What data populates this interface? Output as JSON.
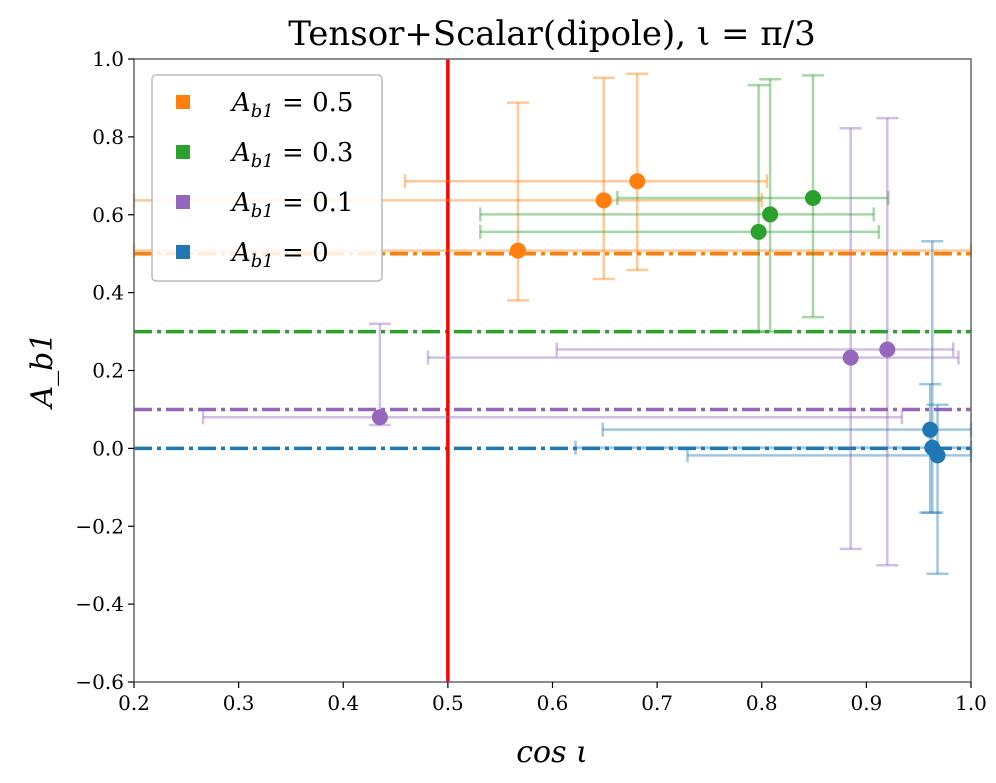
{
  "chart_data": {
    "type": "scatter",
    "title": "Tensor+Scalar(dipole), ι = π/3",
    "xlabel": "cos ι",
    "ylabel": "A_b1",
    "xlim": [
      0.2,
      1.0
    ],
    "ylim": [
      -0.6,
      1.0
    ],
    "xticks": [
      "0.2",
      "0.3",
      "0.4",
      "0.5",
      "0.6",
      "0.7",
      "0.8",
      "0.9",
      "1.0"
    ],
    "xtick_values": [
      0.2,
      0.3,
      0.4,
      0.5,
      0.6,
      0.7,
      0.8,
      0.9,
      1.0
    ],
    "yticks": [
      "−0.6",
      "−0.4",
      "−0.2",
      "0.0",
      "0.2",
      "0.4",
      "0.6",
      "0.8",
      "1.0"
    ],
    "ytick_values": [
      -0.6,
      -0.4,
      -0.2,
      0.0,
      0.2,
      0.4,
      0.6,
      0.8,
      1.0
    ],
    "vertical_line": {
      "x": 0.5,
      "color": "#ff0000"
    },
    "legend_position": "upper-left",
    "series": [
      {
        "name": "A_b1 = 0.5",
        "legend_label": "A",
        "legend_sub": "b1",
        "legend_value": " = 0.5",
        "true_value": 0.5,
        "color": "#ff7f0e",
        "points": [
          {
            "x": 0.567,
            "y": 0.508,
            "xlo": 0.2,
            "xhi": 1.0,
            "ylo": 0.38,
            "yhi": 0.888
          },
          {
            "x": 0.649,
            "y": 0.637,
            "xlo": 0.2,
            "xhi": 0.8,
            "ylo": 0.435,
            "yhi": 0.952
          },
          {
            "x": 0.681,
            "y": 0.686,
            "xlo": 0.459,
            "xhi": 0.805,
            "ylo": 0.458,
            "yhi": 0.962
          }
        ]
      },
      {
        "name": "A_b1 = 0.3",
        "legend_label": "A",
        "legend_sub": "b1",
        "legend_value": " = 0.3",
        "true_value": 0.3,
        "color": "#2ca02c",
        "points": [
          {
            "x": 0.797,
            "y": 0.556,
            "xlo": 0.531,
            "xhi": 0.912,
            "ylo": 0.3,
            "yhi": 0.933
          },
          {
            "x": 0.808,
            "y": 0.601,
            "xlo": 0.531,
            "xhi": 0.907,
            "ylo": 0.3,
            "yhi": 0.948
          },
          {
            "x": 0.849,
            "y": 0.643,
            "xlo": 0.662,
            "xhi": 0.921,
            "ylo": 0.337,
            "yhi": 0.958
          }
        ]
      },
      {
        "name": "A_b1 = 0.1",
        "legend_label": "A",
        "legend_sub": "b1",
        "legend_value": " = 0.1",
        "true_value": 0.1,
        "color": "#9467bd",
        "points": [
          {
            "x": 0.435,
            "y": 0.08,
            "xlo": 0.266,
            "xhi": 0.934,
            "ylo": 0.06,
            "yhi": 0.32
          },
          {
            "x": 0.885,
            "y": 0.233,
            "xlo": 0.481,
            "xhi": 0.988,
            "ylo": -0.258,
            "yhi": 0.822
          },
          {
            "x": 0.92,
            "y": 0.254,
            "xlo": 0.604,
            "xhi": 0.983,
            "ylo": -0.3,
            "yhi": 0.848
          }
        ]
      },
      {
        "name": "A_b1 = 0",
        "legend_label": "A",
        "legend_sub": "b1",
        "legend_value": " = 0",
        "true_value": 0.0,
        "color": "#1f77b4",
        "points": [
          {
            "x": 0.961,
            "y": 0.048,
            "xlo": 0.648,
            "xhi": 1.0,
            "ylo": -0.165,
            "yhi": 0.165
          },
          {
            "x": 0.963,
            "y": 0.002,
            "xlo": 0.622,
            "xhi": 1.0,
            "ylo": -0.165,
            "yhi": 0.532
          },
          {
            "x": 0.968,
            "y": -0.018,
            "xlo": 0.729,
            "xhi": 1.0,
            "ylo": -0.322,
            "yhi": 0.112
          }
        ]
      }
    ]
  }
}
